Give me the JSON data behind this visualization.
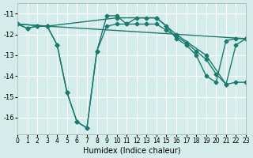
{
  "xlabel": "Humidex (Indice chaleur)",
  "background_color": "#d4ecea",
  "grid_color": "#ffffff",
  "line_color": "#1a7a6e",
  "xlim": [
    0,
    23
  ],
  "ylim": [
    -16.8,
    -10.5
  ],
  "yticks": [
    -11,
    -12,
    -13,
    -14,
    -15,
    -16
  ],
  "xticks": [
    0,
    1,
    2,
    3,
    4,
    5,
    6,
    7,
    8,
    9,
    10,
    11,
    12,
    13,
    14,
    15,
    16,
    17,
    18,
    19,
    20,
    21,
    22,
    23
  ],
  "lines": [
    {
      "x": [
        0,
        1,
        2,
        3,
        4,
        5,
        6,
        7,
        8,
        9,
        10,
        11,
        12,
        13,
        14,
        15,
        16,
        17,
        18,
        19,
        20,
        21,
        22,
        23
      ],
      "y": [
        -11.5,
        -11.7,
        -11.6,
        -11.6,
        -12.5,
        -14.8,
        -16.2,
        -16.5,
        -12.8,
        -11.1,
        -11.1,
        -11.5,
        -11.2,
        -11.2,
        -11.2,
        -11.6,
        -12.2,
        -12.5,
        -13.0,
        -14.0,
        -14.3,
        -12.3,
        -12.2,
        -12.2
      ]
    },
    {
      "x": [
        0,
        1,
        2,
        3,
        4,
        5,
        6,
        7,
        8,
        9,
        10,
        11,
        12,
        13,
        14,
        15,
        16,
        17,
        18,
        19,
        20,
        21,
        22,
        23
      ],
      "y": [
        -11.5,
        -11.7,
        -11.6,
        -11.6,
        -12.5,
        -14.8,
        -16.2,
        -16.5,
        -12.8,
        -11.6,
        -11.5,
        -11.5,
        -11.5,
        -11.5,
        -11.5,
        -11.8,
        -12.1,
        -12.4,
        -12.8,
        -13.2,
        -13.9,
        -14.4,
        -12.5,
        -12.2
      ]
    },
    {
      "x": [
        0,
        3,
        23
      ],
      "y": [
        -11.5,
        -11.6,
        -12.2
      ]
    },
    {
      "x": [
        0,
        3,
        10,
        14,
        16,
        19,
        21,
        22,
        23
      ],
      "y": [
        -11.5,
        -11.6,
        -11.2,
        -11.2,
        -12.0,
        -13.0,
        -14.4,
        -14.3,
        -14.3
      ]
    }
  ]
}
